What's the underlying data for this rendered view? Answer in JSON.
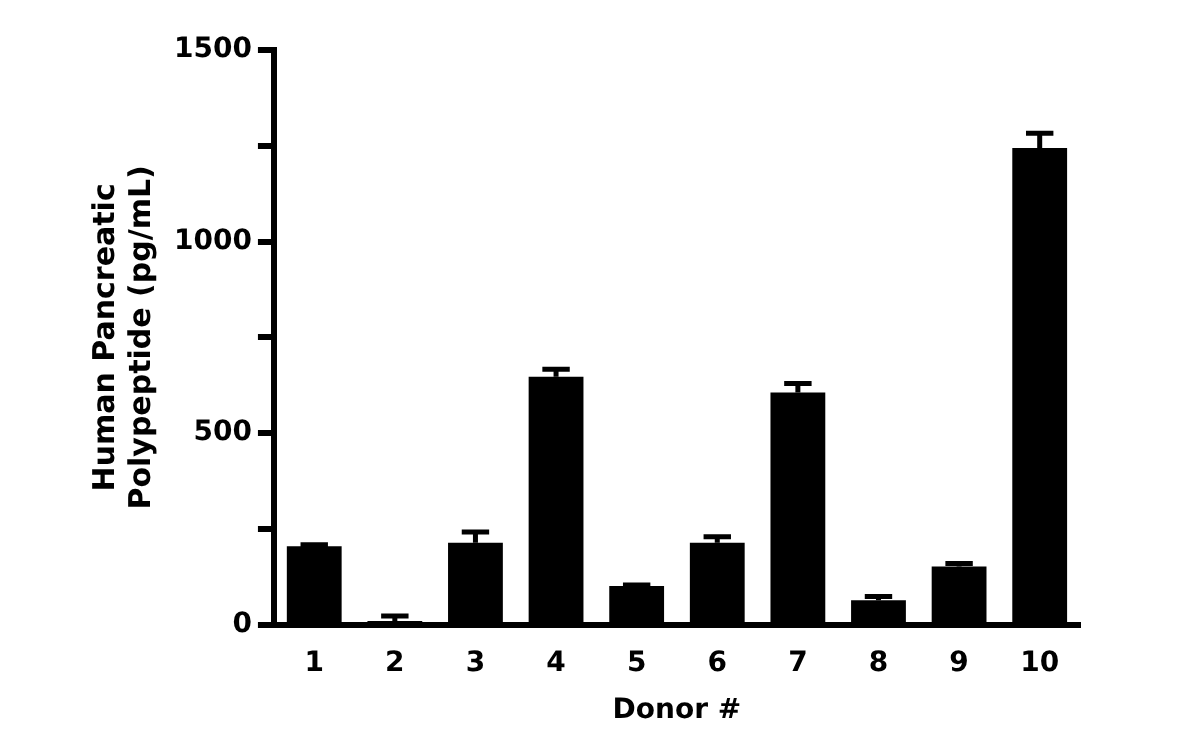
{
  "chart_data": {
    "type": "bar",
    "xlabel": "Donor #",
    "ylabel": "Human Pancreatic Polypeptide (pg/mL)",
    "categories": [
      "1",
      "2",
      "3",
      "4",
      "5",
      "6",
      "7",
      "8",
      "9",
      "10"
    ],
    "values": [
      205,
      10,
      214,
      647,
      101,
      214,
      606,
      64,
      152,
      1244
    ],
    "errors": [
      [
        205,
        209
      ],
      [
        10,
        23
      ],
      [
        214,
        242
      ],
      [
        647,
        667
      ],
      [
        101,
        104
      ],
      [
        214,
        230
      ],
      [
        606,
        630
      ],
      [
        64,
        74
      ],
      [
        152,
        160
      ],
      [
        1244,
        1283
      ]
    ],
    "color": "#000000",
    "ylim": [
      0,
      1500
    ],
    "yticks": [
      0,
      {
        "value": 250,
        "label": null
      },
      500,
      {
        "value": 750,
        "label": null
      },
      1000,
      {
        "value": 1250,
        "label": null
      },
      1500
    ],
    "grid": false,
    "legend": false
  }
}
